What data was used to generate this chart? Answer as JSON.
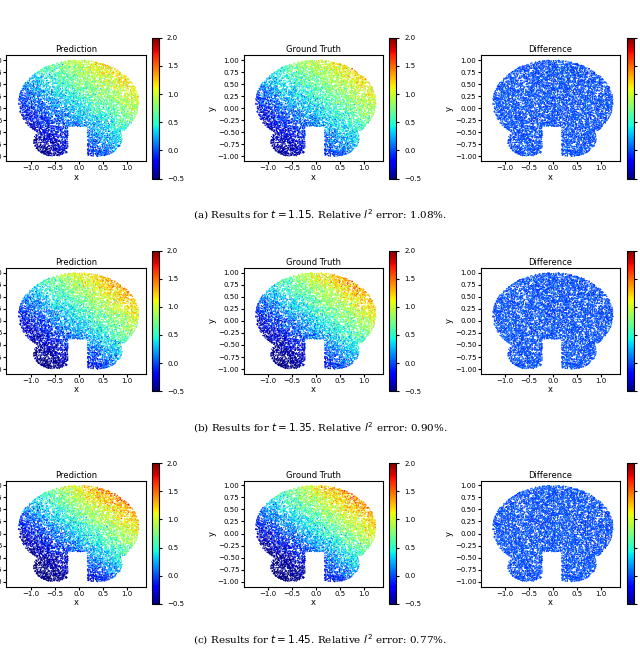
{
  "rows": [
    {
      "t": 1.15,
      "error": "1.08",
      "label": "a"
    },
    {
      "t": 1.35,
      "error": "0.90",
      "label": "b"
    },
    {
      "t": 1.45,
      "error": "0.77",
      "label": "c"
    }
  ],
  "vmin": -0.5,
  "vmax": 2.0,
  "cmap": "jet",
  "n_points": 9000,
  "colorbar_ticks": [
    -0.5,
    0.0,
    0.5,
    1.0,
    1.5,
    2.0
  ],
  "xlim": [
    -1.5,
    1.4
  ],
  "ylim": [
    -1.1,
    1.1
  ],
  "xlabel": "x",
  "ylabel": "y",
  "xticks": [
    -1.0,
    -0.5,
    0.0,
    0.5,
    1.0
  ],
  "yticks": [
    -1.0,
    -0.75,
    -0.5,
    -0.25,
    0.0,
    0.25,
    0.5,
    0.75,
    1.0
  ],
  "col_titles": [
    "Prediction",
    "Ground Truth",
    "Difference"
  ],
  "point_size": 0.8,
  "background_color": "#ffffff"
}
